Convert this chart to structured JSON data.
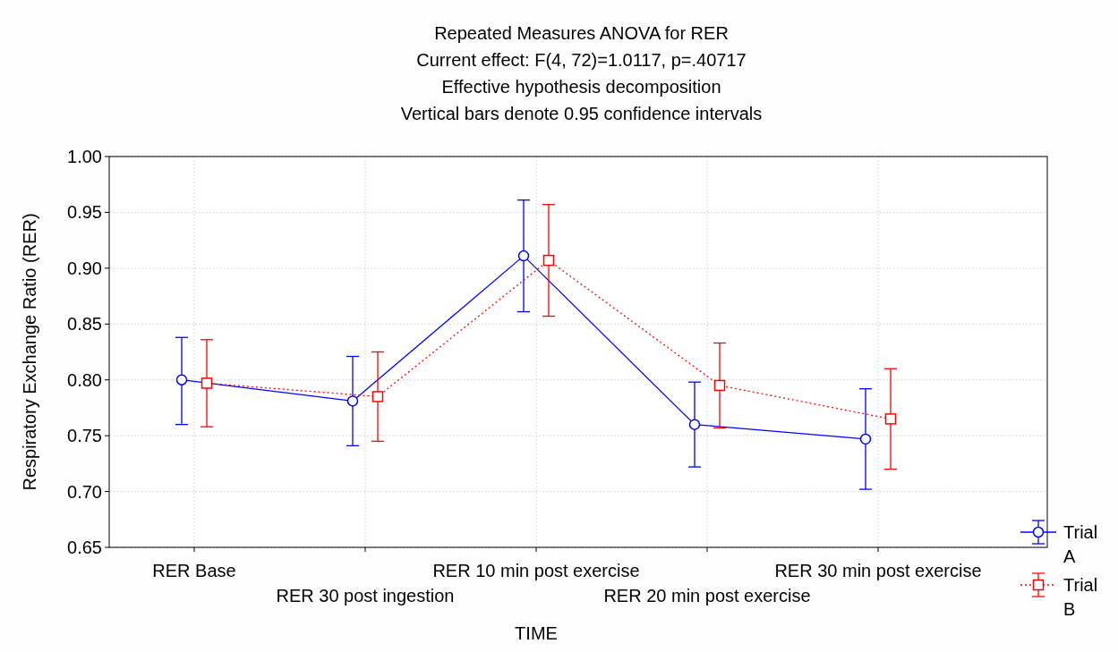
{
  "chart_data": {
    "type": "line",
    "title": "Repeated Measures ANOVA for RER",
    "subtitle": "Current effect: F(4, 72)=1.0117, p=.40717",
    "annotations": [
      "Effective hypothesis decomposition",
      "Vertical bars denote 0.95 confidence intervals"
    ],
    "xlabel": "TIME",
    "ylabel": "Respiratory Exchange Ratio (RER)",
    "categories": [
      "RER Base",
      "RER 30 post ingestion",
      "RER 10 min post exercise",
      "RER 20 min post exercise",
      "RER 30 min post exercise"
    ],
    "ylim": [
      0.65,
      1.0
    ],
    "yticks": [
      {
        "value": 0.65,
        "label": "0.65"
      },
      {
        "value": 0.7,
        "label": "0.70"
      },
      {
        "value": 0.75,
        "label": "0.75"
      },
      {
        "value": 0.8,
        "label": "0.80"
      },
      {
        "value": 0.85,
        "label": "0.85"
      },
      {
        "value": 0.9,
        "label": "0.90"
      },
      {
        "value": 0.95,
        "label": "0.95"
      },
      {
        "value": 1.0,
        "label": "1.00"
      }
    ],
    "grid": true,
    "legend": "bottom right",
    "series": [
      {
        "name": "Trial A",
        "color": "#0000ff",
        "marker": "circle",
        "line_style": "solid",
        "values": [
          0.8,
          0.781,
          0.911,
          0.76,
          0.747
        ],
        "errors": [
          [
            0.76,
            0.838
          ],
          [
            0.741,
            0.821
          ],
          [
            0.861,
            0.961
          ],
          [
            0.722,
            0.798
          ],
          [
            0.702,
            0.792
          ]
        ]
      },
      {
        "name": "Trial B",
        "color": "#ff0000",
        "marker": "square",
        "line_style": "dotted",
        "values": [
          0.797,
          0.785,
          0.907,
          0.795,
          0.765
        ],
        "errors": [
          [
            0.758,
            0.836
          ],
          [
            0.745,
            0.825
          ],
          [
            0.857,
            0.957
          ],
          [
            0.757,
            0.833
          ],
          [
            0.72,
            0.81
          ]
        ]
      }
    ]
  }
}
